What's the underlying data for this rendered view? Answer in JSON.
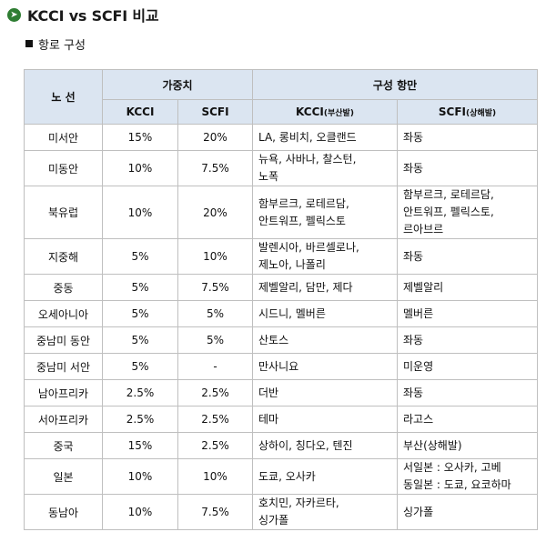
{
  "title": "KCCI vs SCFI 비교",
  "subtitle": "항로 구성",
  "table": {
    "header_route": "노 선",
    "header_weight": "가중치",
    "header_ports": "구성 항만",
    "sub_kcci": "KCCI",
    "sub_scfi": "SCFI",
    "sub_kcci_port_main": "KCCI",
    "sub_kcci_port_note": "(부산발)",
    "sub_scfi_port_main": "SCFI",
    "sub_scfi_port_note": "(상해발)",
    "rows": [
      {
        "route": "미서안",
        "kcci_w": "15%",
        "scfi_w": "20%",
        "kcci_ports": [
          "LA, 롱비치, 오클랜드"
        ],
        "scfi_ports": [
          "좌동"
        ]
      },
      {
        "route": "미동안",
        "kcci_w": "10%",
        "scfi_w": "7.5%",
        "kcci_ports": [
          "뉴욕, 사바나, 찰스턴,",
          "노폭"
        ],
        "scfi_ports": [
          "좌동"
        ]
      },
      {
        "route": "북유럽",
        "kcci_w": "10%",
        "scfi_w": "20%",
        "kcci_ports": [
          "함부르크, 로테르담,",
          "안트워프, 펠릭스토"
        ],
        "scfi_ports": [
          "함부르크, 로테르담,",
          "안트워프, 펠릭스토,",
          "르아브르"
        ]
      },
      {
        "route": "지중해",
        "kcci_w": "5%",
        "scfi_w": "10%",
        "kcci_ports": [
          "발렌시아, 바르셀로나,",
          "제노아, 나폴리"
        ],
        "scfi_ports": [
          "좌동"
        ]
      },
      {
        "route": "중동",
        "kcci_w": "5%",
        "scfi_w": "7.5%",
        "kcci_ports": [
          "제벨알리, 담만, 제다"
        ],
        "scfi_ports": [
          "제벨알리"
        ]
      },
      {
        "route": "오세아니아",
        "kcci_w": "5%",
        "scfi_w": "5%",
        "kcci_ports": [
          "시드니, 멜버른"
        ],
        "scfi_ports": [
          "멜버른"
        ]
      },
      {
        "route": "중남미 동안",
        "kcci_w": "5%",
        "scfi_w": "5%",
        "kcci_ports": [
          "산토스"
        ],
        "scfi_ports": [
          "좌동"
        ]
      },
      {
        "route": "중남미 서안",
        "kcci_w": "5%",
        "scfi_w": "-",
        "kcci_ports": [
          "만사니요"
        ],
        "scfi_ports": [
          "미운영"
        ]
      },
      {
        "route": "남아프리카",
        "kcci_w": "2.5%",
        "scfi_w": "2.5%",
        "kcci_ports": [
          "더반"
        ],
        "scfi_ports": [
          "좌동"
        ]
      },
      {
        "route": "서아프리카",
        "kcci_w": "2.5%",
        "scfi_w": "2.5%",
        "kcci_ports": [
          "테마"
        ],
        "scfi_ports": [
          "라고스"
        ]
      },
      {
        "route": "중국",
        "kcci_w": "15%",
        "scfi_w": "2.5%",
        "kcci_ports": [
          "상하이, 칭다오, 텐진"
        ],
        "scfi_ports": [
          "부산(상해발)"
        ]
      },
      {
        "route": "일본",
        "kcci_w": "10%",
        "scfi_w": "10%",
        "kcci_ports": [
          "도쿄, 오사카"
        ],
        "scfi_ports": [
          "서일본 : 오사카, 고베",
          "동일본 : 도쿄, 요코하마"
        ]
      },
      {
        "route": "동남아",
        "kcci_w": "10%",
        "scfi_w": "7.5%",
        "kcci_ports": [
          "호치민, 자카르타,",
          "싱가폴"
        ],
        "scfi_ports": [
          "싱가폴"
        ]
      }
    ]
  }
}
